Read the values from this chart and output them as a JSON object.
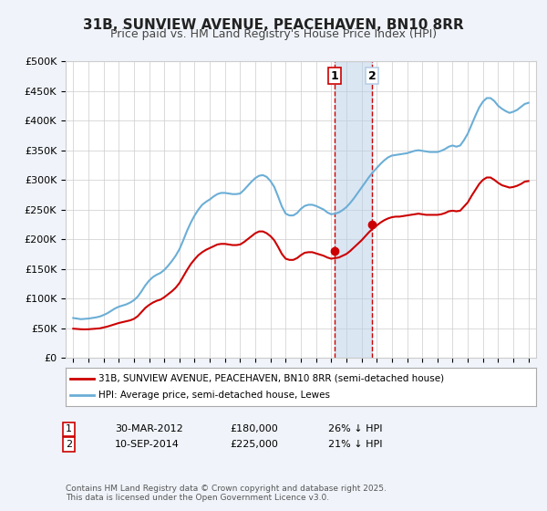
{
  "title": "31B, SUNVIEW AVENUE, PEACEHAVEN, BN10 8RR",
  "subtitle": "Price paid vs. HM Land Registry's House Price Index (HPI)",
  "ylabel_ticks": [
    "£0",
    "£50K",
    "£100K",
    "£150K",
    "£200K",
    "£250K",
    "£300K",
    "£350K",
    "£400K",
    "£450K",
    "£500K"
  ],
  "ytick_values": [
    0,
    50000,
    100000,
    150000,
    200000,
    250000,
    300000,
    350000,
    400000,
    450000,
    500000
  ],
  "xlim": [
    1994.5,
    2025.5
  ],
  "ylim": [
    0,
    500000
  ],
  "background_color": "#f0f4fa",
  "plot_bg_color": "#ffffff",
  "hpi_color": "#6baed6",
  "price_color": "#cc0000",
  "sale1_date_num": 2012.24,
  "sale2_date_num": 2014.69,
  "sale1_price": 180000,
  "sale2_price": 225000,
  "sale1_label": "1",
  "sale2_label": "2",
  "legend_line1": "31B, SUNVIEW AVENUE, PEACEHAVEN, BN10 8RR (semi-detached house)",
  "legend_line2": "HPI: Average price, semi-detached house, Lewes",
  "table_row1": [
    "1",
    "30-MAR-2012",
    "£180,000",
    "26% ↓ HPI"
  ],
  "table_row2": [
    "2",
    "10-SEP-2014",
    "£225,000",
    "21% ↓ HPI"
  ],
  "footnote": "Contains HM Land Registry data © Crown copyright and database right 2025.\nThis data is licensed under the Open Government Licence v3.0.",
  "hpi_data": {
    "years": [
      1995.0,
      1995.25,
      1995.5,
      1995.75,
      1996.0,
      1996.25,
      1996.5,
      1996.75,
      1997.0,
      1997.25,
      1997.5,
      1997.75,
      1998.0,
      1998.25,
      1998.5,
      1998.75,
      1999.0,
      1999.25,
      1999.5,
      1999.75,
      2000.0,
      2000.25,
      2000.5,
      2000.75,
      2001.0,
      2001.25,
      2001.5,
      2001.75,
      2002.0,
      2002.25,
      2002.5,
      2002.75,
      2003.0,
      2003.25,
      2003.5,
      2003.75,
      2004.0,
      2004.25,
      2004.5,
      2004.75,
      2005.0,
      2005.25,
      2005.5,
      2005.75,
      2006.0,
      2006.25,
      2006.5,
      2006.75,
      2007.0,
      2007.25,
      2007.5,
      2007.75,
      2008.0,
      2008.25,
      2008.5,
      2008.75,
      2009.0,
      2009.25,
      2009.5,
      2009.75,
      2010.0,
      2010.25,
      2010.5,
      2010.75,
      2011.0,
      2011.25,
      2011.5,
      2011.75,
      2012.0,
      2012.25,
      2012.5,
      2012.75,
      2013.0,
      2013.25,
      2013.5,
      2013.75,
      2014.0,
      2014.25,
      2014.5,
      2014.75,
      2015.0,
      2015.25,
      2015.5,
      2015.75,
      2016.0,
      2016.25,
      2016.5,
      2016.75,
      2017.0,
      2017.25,
      2017.5,
      2017.75,
      2018.0,
      2018.25,
      2018.5,
      2018.75,
      2019.0,
      2019.25,
      2019.5,
      2019.75,
      2020.0,
      2020.25,
      2020.5,
      2020.75,
      2021.0,
      2021.25,
      2021.5,
      2021.75,
      2022.0,
      2022.25,
      2022.5,
      2022.75,
      2023.0,
      2023.25,
      2023.5,
      2023.75,
      2024.0,
      2024.25,
      2024.5,
      2024.75,
      2025.0
    ],
    "values": [
      67000,
      66000,
      65000,
      65500,
      66000,
      67000,
      68000,
      69500,
      72000,
      75000,
      79000,
      83000,
      86000,
      88000,
      90000,
      93000,
      97000,
      103000,
      112000,
      122000,
      130000,
      136000,
      140000,
      143000,
      148000,
      155000,
      163000,
      172000,
      183000,
      198000,
      214000,
      228000,
      240000,
      250000,
      258000,
      263000,
      267000,
      272000,
      276000,
      278000,
      278000,
      277000,
      276000,
      276000,
      277000,
      283000,
      290000,
      297000,
      303000,
      307000,
      308000,
      305000,
      298000,
      288000,
      272000,
      255000,
      243000,
      240000,
      240000,
      244000,
      251000,
      256000,
      258000,
      258000,
      256000,
      253000,
      250000,
      245000,
      242000,
      243000,
      245000,
      249000,
      254000,
      261000,
      269000,
      278000,
      287000,
      296000,
      305000,
      313000,
      320000,
      327000,
      333000,
      338000,
      341000,
      342000,
      343000,
      344000,
      345000,
      347000,
      349000,
      350000,
      349000,
      348000,
      347000,
      347000,
      347000,
      349000,
      352000,
      356000,
      358000,
      356000,
      358000,
      367000,
      378000,
      393000,
      408000,
      422000,
      432000,
      438000,
      438000,
      433000,
      425000,
      420000,
      416000,
      413000,
      415000,
      418000,
      423000,
      428000,
      430000
    ]
  },
  "price_data": {
    "years": [
      1995.0,
      1995.25,
      1995.5,
      1995.75,
      1996.0,
      1996.25,
      1996.5,
      1996.75,
      1997.0,
      1997.25,
      1997.5,
      1997.75,
      1998.0,
      1998.25,
      1998.5,
      1998.75,
      1999.0,
      1999.25,
      1999.5,
      1999.75,
      2000.0,
      2000.25,
      2000.5,
      2000.75,
      2001.0,
      2001.25,
      2001.5,
      2001.75,
      2002.0,
      2002.25,
      2002.5,
      2002.75,
      2003.0,
      2003.25,
      2003.5,
      2003.75,
      2004.0,
      2004.25,
      2004.5,
      2004.75,
      2005.0,
      2005.25,
      2005.5,
      2005.75,
      2006.0,
      2006.25,
      2006.5,
      2006.75,
      2007.0,
      2007.25,
      2007.5,
      2007.75,
      2008.0,
      2008.25,
      2008.5,
      2008.75,
      2009.0,
      2009.25,
      2009.5,
      2009.75,
      2010.0,
      2010.25,
      2010.5,
      2010.75,
      2011.0,
      2011.25,
      2011.5,
      2011.75,
      2012.0,
      2012.25,
      2012.5,
      2012.75,
      2013.0,
      2013.25,
      2013.5,
      2013.75,
      2014.0,
      2014.25,
      2014.5,
      2014.75,
      2015.0,
      2015.25,
      2015.5,
      2015.75,
      2016.0,
      2016.25,
      2016.5,
      2016.75,
      2017.0,
      2017.25,
      2017.5,
      2017.75,
      2018.0,
      2018.25,
      2018.5,
      2018.75,
      2019.0,
      2019.25,
      2019.5,
      2019.75,
      2020.0,
      2020.25,
      2020.5,
      2020.75,
      2021.0,
      2021.25,
      2021.5,
      2021.75,
      2022.0,
      2022.25,
      2022.5,
      2022.75,
      2023.0,
      2023.25,
      2023.5,
      2023.75,
      2024.0,
      2024.25,
      2024.5,
      2024.75,
      2025.0
    ],
    "values": [
      49000,
      48500,
      48000,
      47800,
      48000,
      48500,
      49000,
      49500,
      51000,
      52500,
      54500,
      56500,
      58500,
      60000,
      61500,
      63000,
      65500,
      70000,
      77000,
      84000,
      89000,
      93000,
      96000,
      98000,
      102000,
      107000,
      112000,
      118000,
      126000,
      137000,
      148000,
      158000,
      166000,
      173000,
      178000,
      182000,
      185000,
      188000,
      191000,
      192000,
      192000,
      191000,
      190000,
      190000,
      191000,
      195000,
      200000,
      205000,
      210000,
      213000,
      213000,
      210000,
      205000,
      198000,
      187000,
      175000,
      167000,
      165000,
      165000,
      168000,
      173000,
      177000,
      178000,
      178000,
      176000,
      174000,
      172000,
      169000,
      167000,
      168000,
      169000,
      172000,
      175000,
      180000,
      186000,
      192000,
      198000,
      205000,
      212000,
      218000,
      223000,
      228000,
      232000,
      235000,
      237000,
      238000,
      238000,
      239000,
      240000,
      241000,
      242000,
      243000,
      242000,
      241000,
      241000,
      241000,
      241000,
      242000,
      244000,
      247000,
      248000,
      247000,
      248000,
      255000,
      262000,
      273000,
      283000,
      293000,
      300000,
      304000,
      304000,
      300000,
      295000,
      291000,
      289000,
      287000,
      288000,
      290000,
      293000,
      297000,
      298000
    ]
  }
}
